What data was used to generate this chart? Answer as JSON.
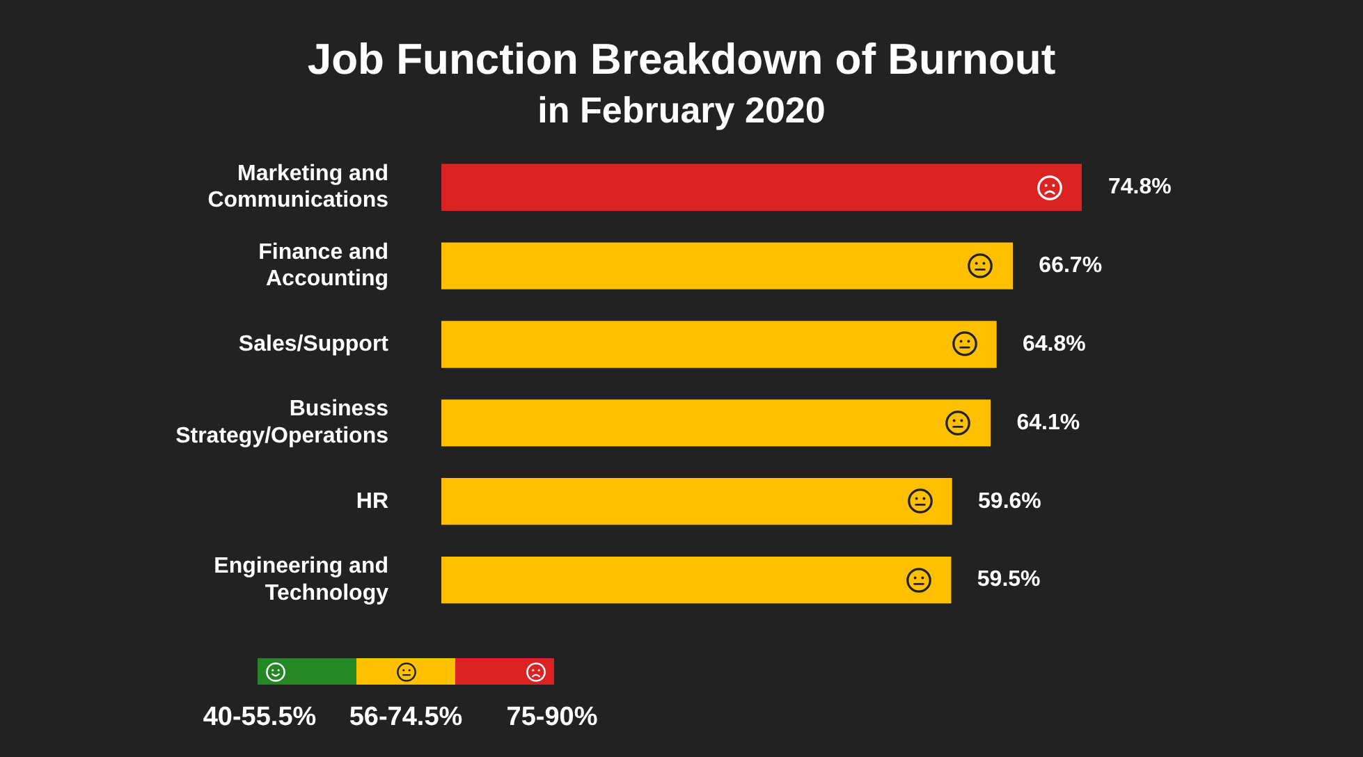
{
  "chart_data": {
    "type": "bar",
    "orientation": "horizontal",
    "title": "Job Function Breakdown of Burnout",
    "subtitle": "in February 2020",
    "categories": [
      "Marketing and Communications",
      "Finance and Accounting",
      "Sales/Support",
      "Business Strategy/Operations",
      "HR",
      "Engineering and Technology"
    ],
    "series": [
      {
        "name": "40-55.5%",
        "color": "#238823",
        "values": [
          null,
          null,
          null,
          null,
          null,
          null
        ]
      },
      {
        "name": "56-74.5%",
        "color": "#ffc000",
        "values": [
          null,
          66.7,
          64.8,
          64.1,
          59.6,
          59.5
        ],
        "value_labels": [
          null,
          "66.7%",
          "64.8%",
          "64.1%",
          "59.6%",
          "59.5%"
        ]
      },
      {
        "name": "75-90%",
        "color": "#dc2323",
        "values": [
          74.8,
          null,
          null,
          null,
          null,
          null
        ],
        "value_labels": [
          "74.8%",
          null,
          null,
          null,
          null,
          null
        ]
      }
    ],
    "legend": "bottom left",
    "tick_labels": "y"
  }
}
